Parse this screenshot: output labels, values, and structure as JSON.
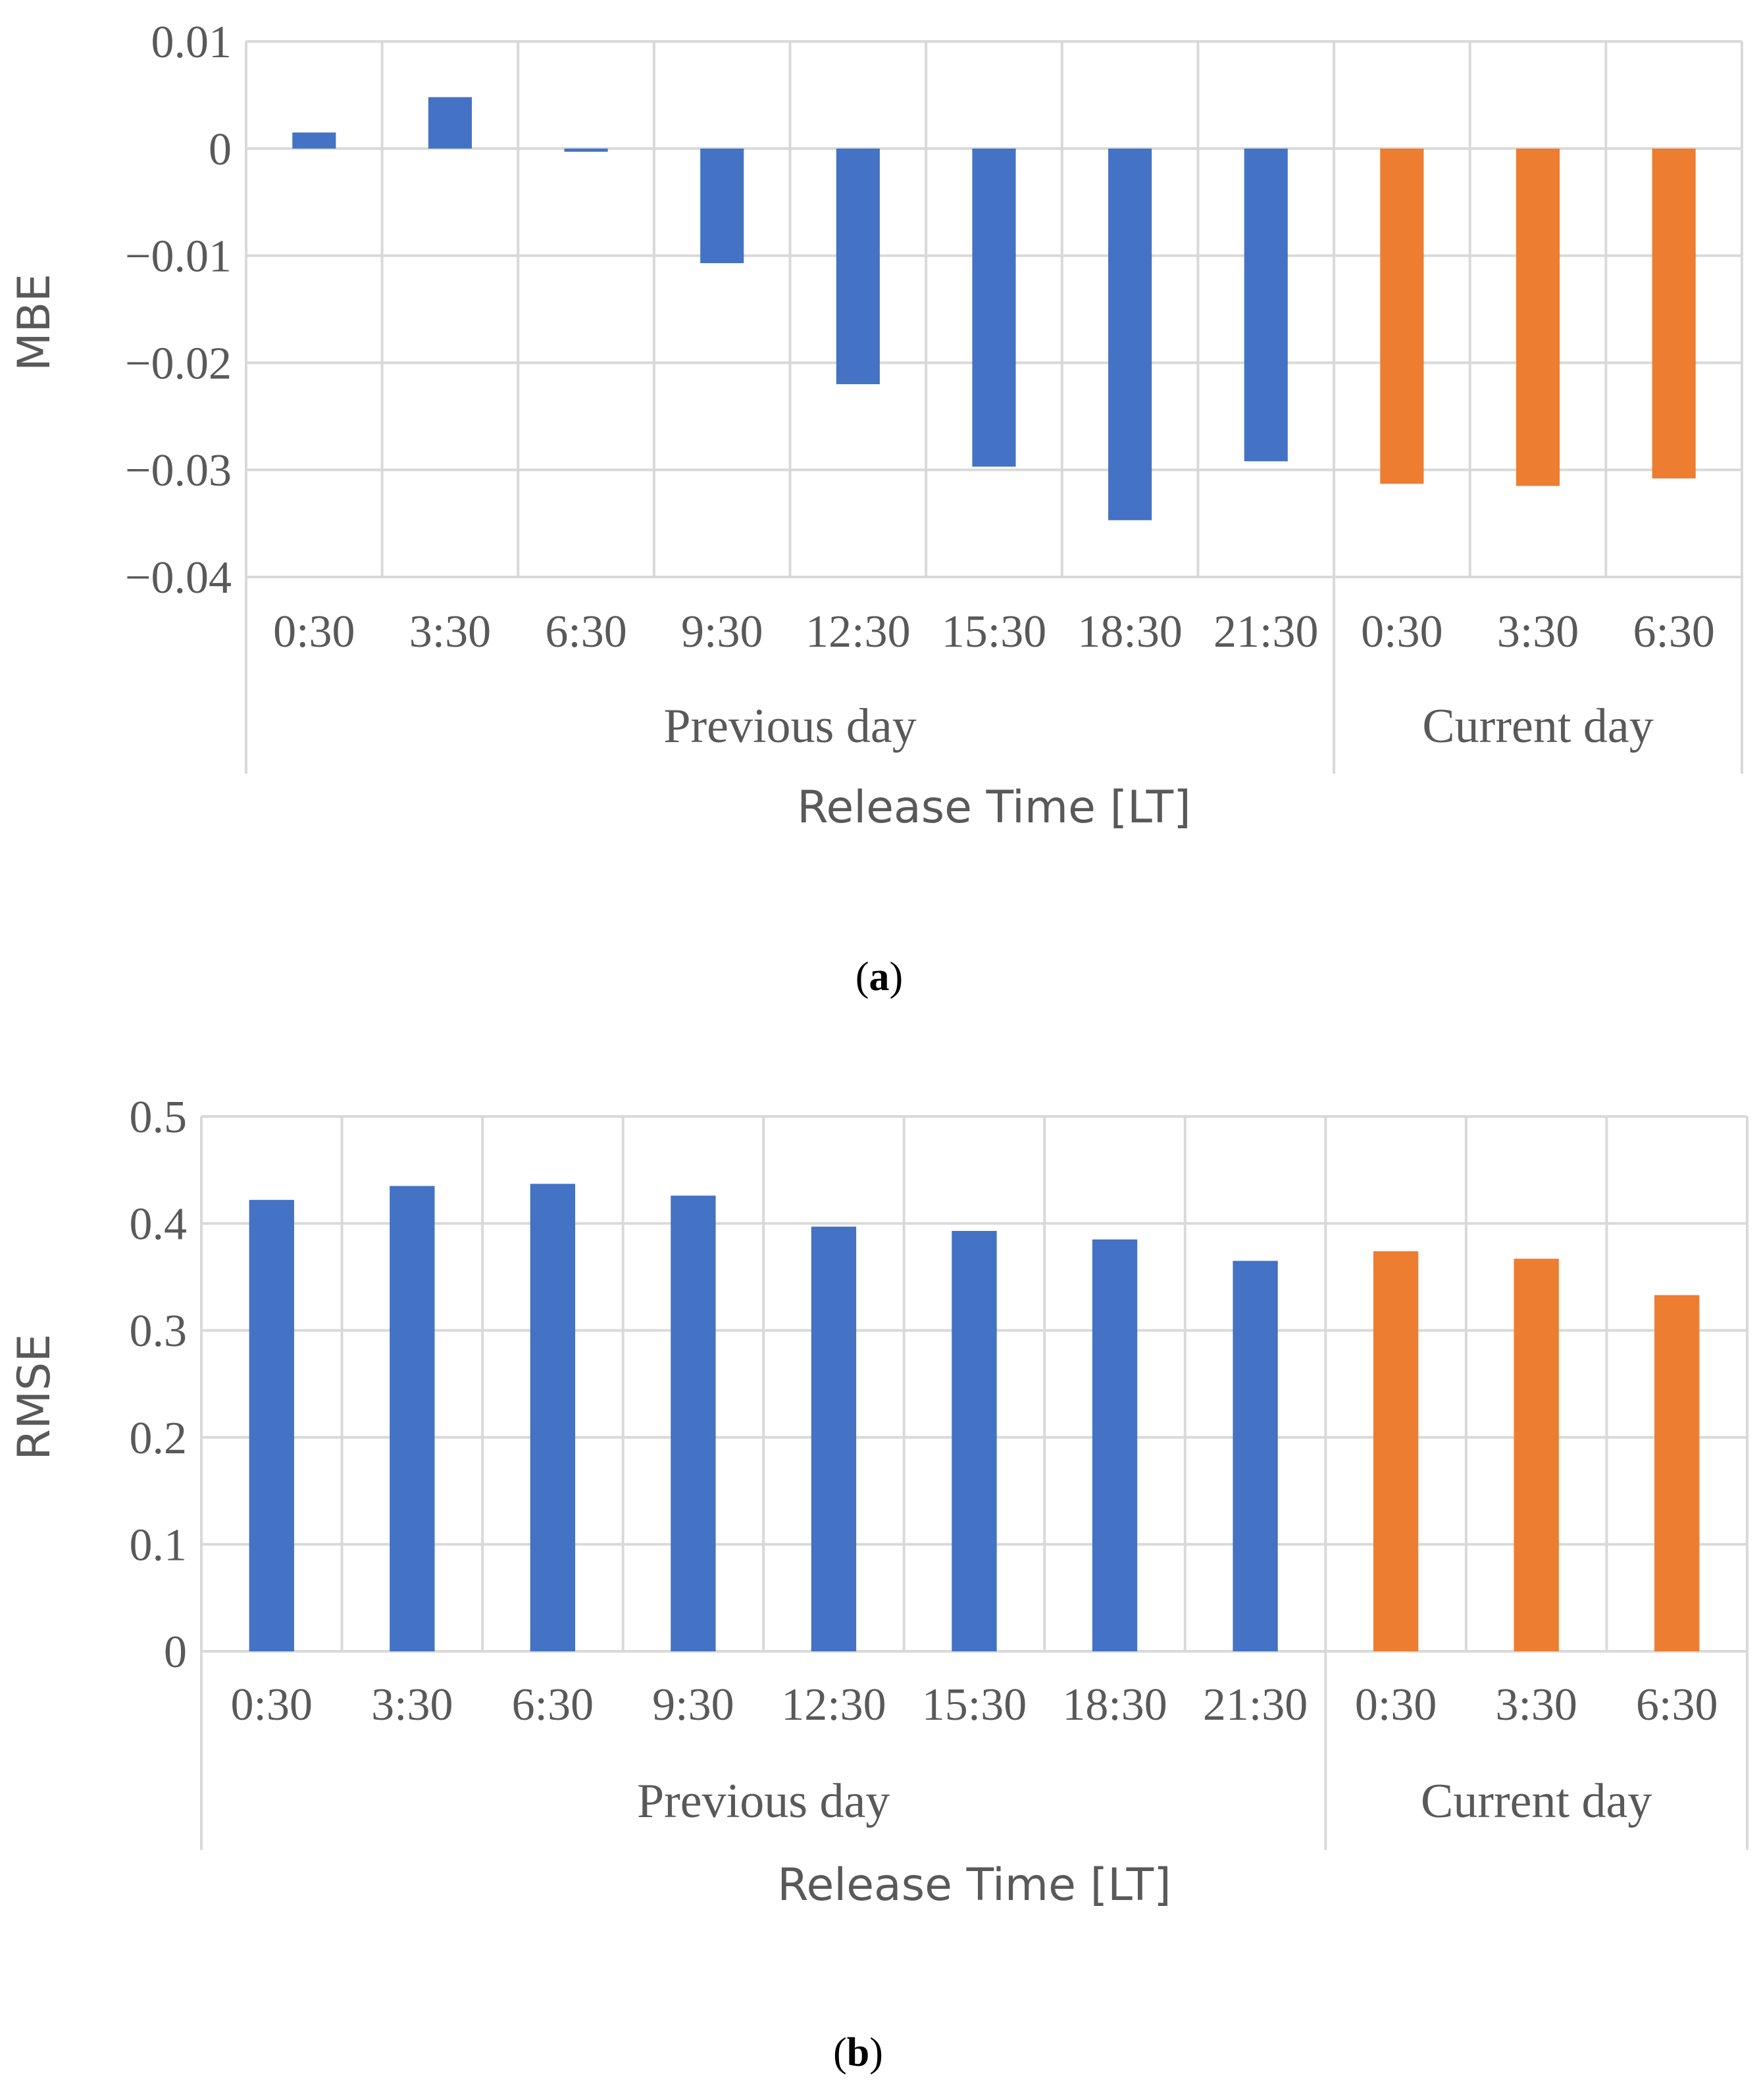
{
  "chart_data": [
    {
      "type": "bar",
      "categories": [
        "0:30",
        "3:30",
        "6:30",
        "9:30",
        "12:30",
        "15:30",
        "18:30",
        "21:30",
        "0:30",
        "3:30",
        "6:30"
      ],
      "groups": [
        {
          "label": "Previous day",
          "start": 0,
          "end": 7
        },
        {
          "label": "Current day",
          "start": 8,
          "end": 10
        }
      ],
      "values": [
        0.0015,
        0.0048,
        -0.0003,
        -0.0107,
        -0.022,
        -0.0297,
        -0.0347,
        -0.0292,
        -0.0313,
        -0.0315,
        -0.0308
      ],
      "bar_colors": [
        "#4472c4",
        "#4472c4",
        "#4472c4",
        "#4472c4",
        "#4472c4",
        "#4472c4",
        "#4472c4",
        "#4472c4",
        "#ed7d31",
        "#ed7d31",
        "#ed7d31"
      ],
      "yticks": [
        "0.01",
        "0",
        "−0.01",
        "−0.02",
        "−0.03",
        "−0.04"
      ],
      "ytick_values": [
        0.01,
        0,
        -0.01,
        -0.02,
        -0.03,
        -0.04
      ],
      "ylim": [
        -0.04,
        0.01
      ],
      "ylabel": "MBE",
      "xlabel": "Release Time [LT]",
      "grid": true,
      "caption_open": "(",
      "caption_letter": "a",
      "caption_close": ")"
    },
    {
      "type": "bar",
      "categories": [
        "0:30",
        "3:30",
        "6:30",
        "9:30",
        "12:30",
        "15:30",
        "18:30",
        "21:30",
        "0:30",
        "3:30",
        "6:30"
      ],
      "groups": [
        {
          "label": "Previous day",
          "start": 0,
          "end": 7
        },
        {
          "label": "Current day",
          "start": 8,
          "end": 10
        }
      ],
      "values": [
        0.422,
        0.435,
        0.437,
        0.426,
        0.397,
        0.393,
        0.385,
        0.365,
        0.374,
        0.367,
        0.333
      ],
      "bar_colors": [
        "#4472c4",
        "#4472c4",
        "#4472c4",
        "#4472c4",
        "#4472c4",
        "#4472c4",
        "#4472c4",
        "#4472c4",
        "#ed7d31",
        "#ed7d31",
        "#ed7d31"
      ],
      "yticks": [
        "0.5",
        "0.4",
        "0.3",
        "0.2",
        "0.1",
        "0"
      ],
      "ytick_values": [
        0.5,
        0.4,
        0.3,
        0.2,
        0.1,
        0
      ],
      "ylim": [
        0,
        0.5
      ],
      "ylabel": "RMSE",
      "xlabel": "Release Time [LT]",
      "grid": true,
      "caption_open": "(",
      "caption_letter": "b",
      "caption_close": ")"
    }
  ]
}
